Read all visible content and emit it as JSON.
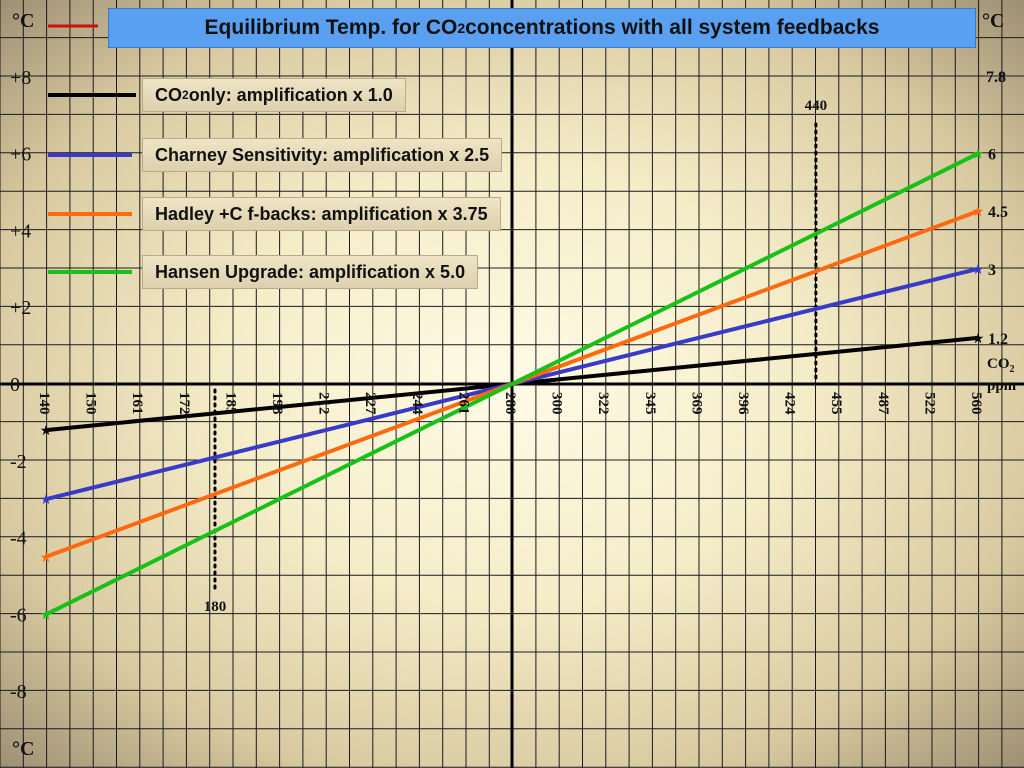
{
  "chart_data": {
    "type": "line",
    "title": {
      "pre": "Equilibrium Temp. for CO",
      "sub": "2",
      "post": " concentrations with  all system feedbacks"
    },
    "unit_label": "°C",
    "x_axis": {
      "label_main": "CO",
      "label_sub": "2",
      "label_unit": "ppm",
      "tick_labels": [
        "140",
        "150",
        "161",
        "172",
        "185",
        "198",
        "212",
        "227",
        "244",
        "261",
        "280",
        "300",
        "322",
        "345",
        "369",
        "396",
        "424",
        "455",
        "487",
        "522",
        "560"
      ]
    },
    "y_axis": {
      "range": [
        -10,
        10
      ],
      "tick_labels": [
        {
          "value": 8,
          "text": "+8"
        },
        {
          "value": 6,
          "text": "+6"
        },
        {
          "value": 4,
          "text": "+4"
        },
        {
          "value": 2,
          "text": "+2"
        },
        {
          "value": 0,
          "text": "0"
        },
        {
          "value": -2,
          "text": "-2"
        },
        {
          "value": -4,
          "text": "-4"
        },
        {
          "value": -6,
          "text": "-6"
        },
        {
          "value": -8,
          "text": "-8"
        }
      ]
    },
    "series": [
      {
        "name_pre": "CO",
        "name_sub": "2",
        "name_post": " only: amplification x 1.0",
        "color": "#000000",
        "x": [
          "140",
          "560"
        ],
        "values": [
          -1.2,
          1.2
        ],
        "end_label": "1.2"
      },
      {
        "name_pre": "Charney Sensitivity: amplification x 2.5",
        "name_sub": "",
        "name_post": "",
        "color": "#3a3ac8",
        "x": [
          "140",
          "560"
        ],
        "values": [
          -3,
          3
        ],
        "end_label": "3"
      },
      {
        "name_pre": "Hadley +C f-backs: amplification x 3.75",
        "name_sub": "",
        "name_post": "",
        "color": "#ff6a10",
        "x": [
          "140",
          "560"
        ],
        "values": [
          -4.5,
          4.5
        ],
        "end_label": "4.5"
      },
      {
        "name_pre": "Hansen Upgrade: amplification x 5.0",
        "name_sub": "",
        "name_post": "",
        "color": "#18c018",
        "x": [
          "140",
          "560"
        ],
        "values": [
          -6,
          6
        ],
        "end_label": "6"
      }
    ],
    "top_right_label": "7.8",
    "top_left_legend_color": "#cc1010",
    "annotations": [
      {
        "x_ppm": 440,
        "label": "440"
      },
      {
        "x_ppm": 180,
        "label": "180"
      }
    ],
    "grid": true
  }
}
